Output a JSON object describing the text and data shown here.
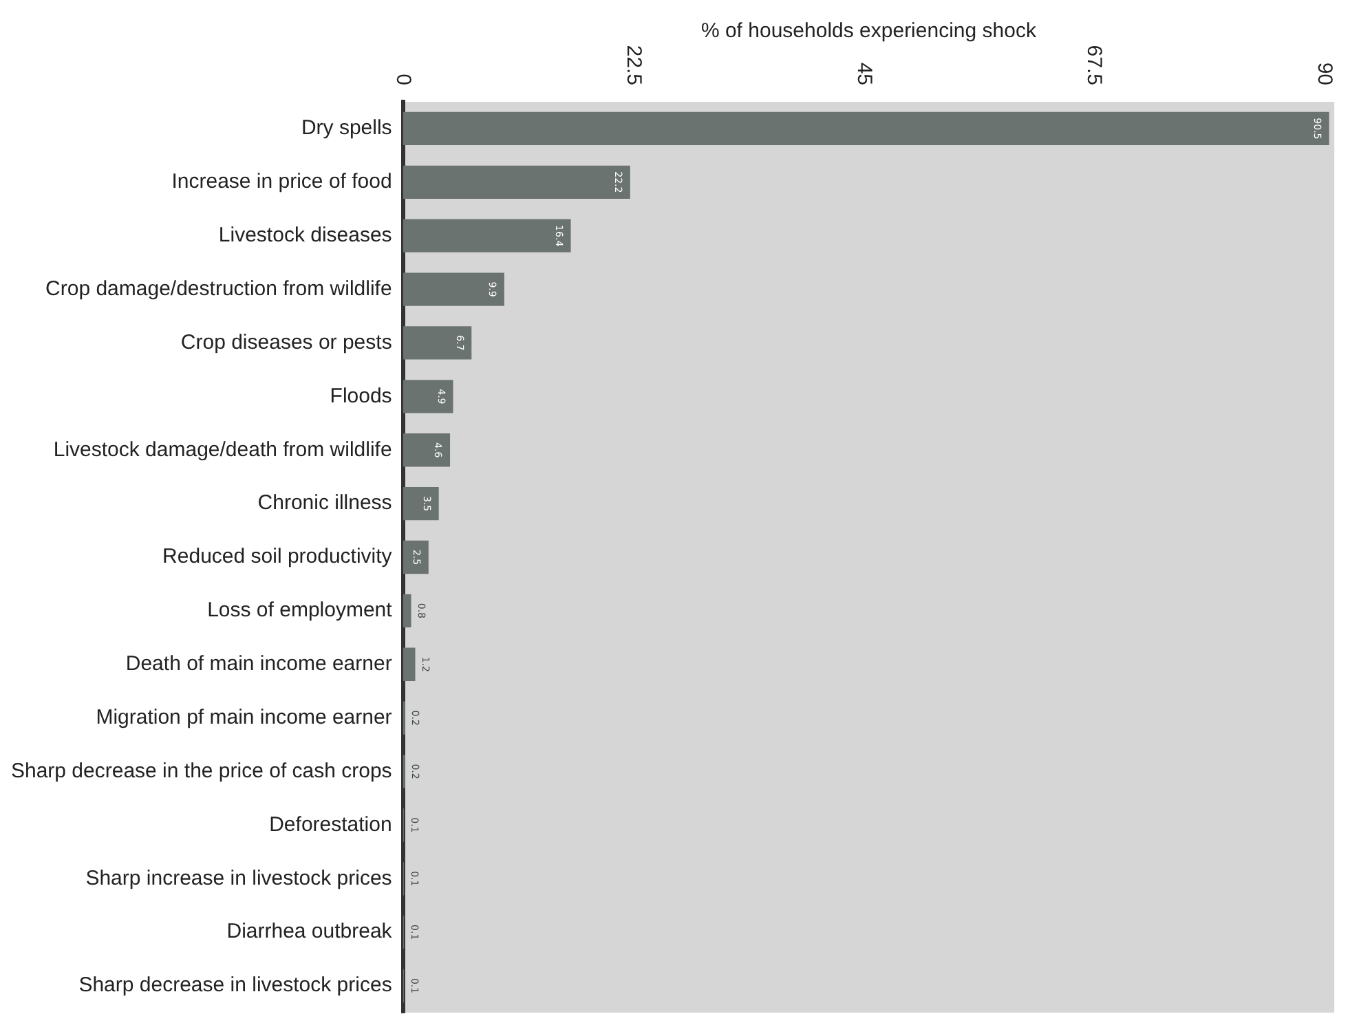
{
  "chart_data": {
    "type": "bar",
    "orientation": "horizontal",
    "xlabel": "% of households experiencing shock",
    "categories": [
      "Dry spells",
      "Increase in price of food",
      "Livestock diseases",
      "Crop damage/destruction from wildlife",
      "Crop diseases or pests",
      "Floods",
      "Livestock damage/death from wildlife",
      "Chronic illness",
      "Reduced soil productivity",
      "Loss of employment",
      "Death of main income earner",
      "Migration pf main income earner",
      "Sharp decrease in the price of cash crops",
      "Deforestation",
      "Sharp increase in livestock prices",
      "Diarrhea outbreak",
      "Sharp decrease in livestock prices"
    ],
    "values": [
      90.5,
      22.2,
      16.4,
      9.9,
      6.7,
      4.9,
      4.6,
      3.5,
      2.5,
      0.8,
      1.2,
      0.2,
      0.2,
      0.1,
      0.1,
      0.1,
      0.1
    ],
    "color": "#6b7370",
    "xlim": [
      0,
      91
    ],
    "xticks": [
      0,
      22.5,
      45,
      67.5,
      90
    ],
    "grid": false,
    "data_labels": true
  }
}
